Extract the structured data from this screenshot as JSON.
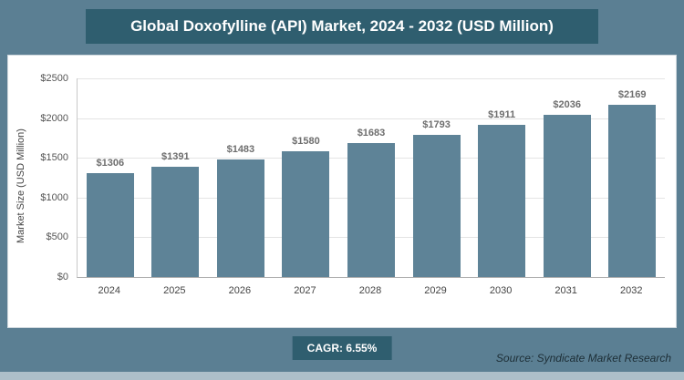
{
  "title": "Global Doxofylline (API) Market, 2024 - 2032 (USD Million)",
  "chart_data": {
    "type": "bar",
    "categories": [
      "2024",
      "2025",
      "2026",
      "2027",
      "2028",
      "2029",
      "2030",
      "2031",
      "2032"
    ],
    "values": [
      1306,
      1391,
      1483,
      1580,
      1683,
      1793,
      1911,
      2036,
      2169
    ],
    "value_labels": [
      "$1306",
      "$1391",
      "$1483",
      "$1580",
      "$1683",
      "$1793",
      "$1911",
      "$2036",
      "$2169"
    ],
    "title": "Global Doxofylline (API) Market, 2024 - 2032 (USD Million)",
    "xlabel": "",
    "ylabel": "Market Size (USD Million)",
    "ylim": [
      0,
      2500
    ],
    "yticks": [
      0,
      500,
      1000,
      1500,
      2000,
      2500
    ],
    "ytick_labels": [
      "$0",
      "$500",
      "$1000",
      "$1500",
      "$2000",
      "$2500"
    ],
    "grid": "horizontal",
    "legend": "none"
  },
  "footer": {
    "cagr_label": "CAGR: 6.55%",
    "source": "Source: Syndicate Market Research"
  },
  "colors": {
    "background": "#5b7f93",
    "panel": "#ffffff",
    "title_bg": "#2f5e6f",
    "badge_bg": "#2f5e6f",
    "bar": "#5e8397",
    "grid": "#e4e4e4"
  }
}
